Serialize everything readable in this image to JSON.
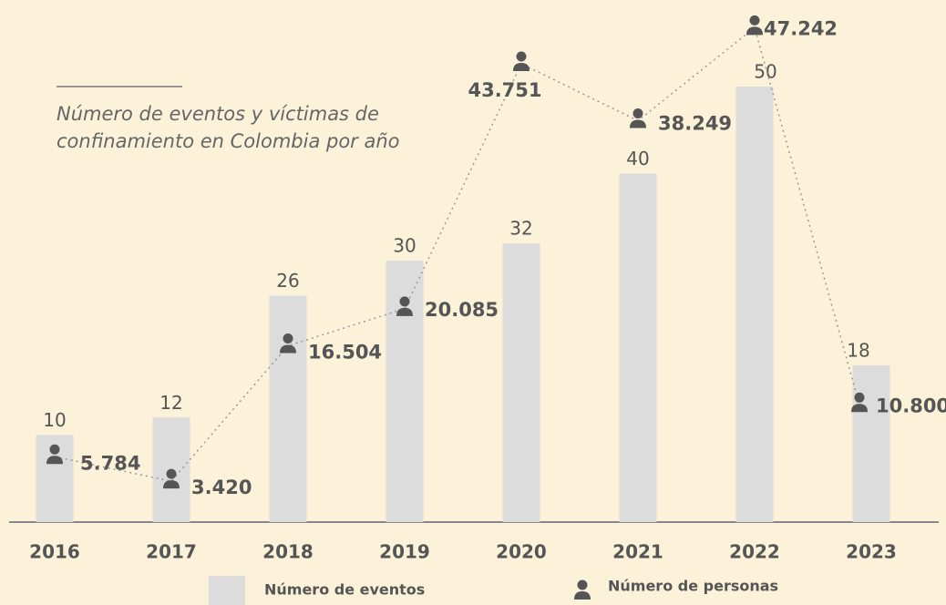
{
  "chart_data": {
    "type": "bar-line",
    "title": "Número de eventos y víctimas de confinamiento en Colombia por año",
    "categories": [
      "2016",
      "2017",
      "2018",
      "2019",
      "2020",
      "2021",
      "2022",
      "2023"
    ],
    "series": [
      {
        "name": "Número de eventos",
        "color": "#dcdcdc",
        "values": [
          10,
          12,
          26,
          30,
          32,
          40,
          50,
          18
        ]
      },
      {
        "name": "Número de personas",
        "color": "#555555",
        "axis": "y2",
        "values": [
          5784,
          3420,
          16504,
          20085,
          43751,
          38249,
          47242,
          10800
        ],
        "value_labels": [
          "5.784",
          "3.420",
          "16.504",
          "20.085",
          "43.751",
          "38.249",
          "47.242",
          "10.800"
        ]
      }
    ],
    "ylim": [
      0,
      60
    ],
    "y2lim": [
      0,
      50000
    ]
  }
}
